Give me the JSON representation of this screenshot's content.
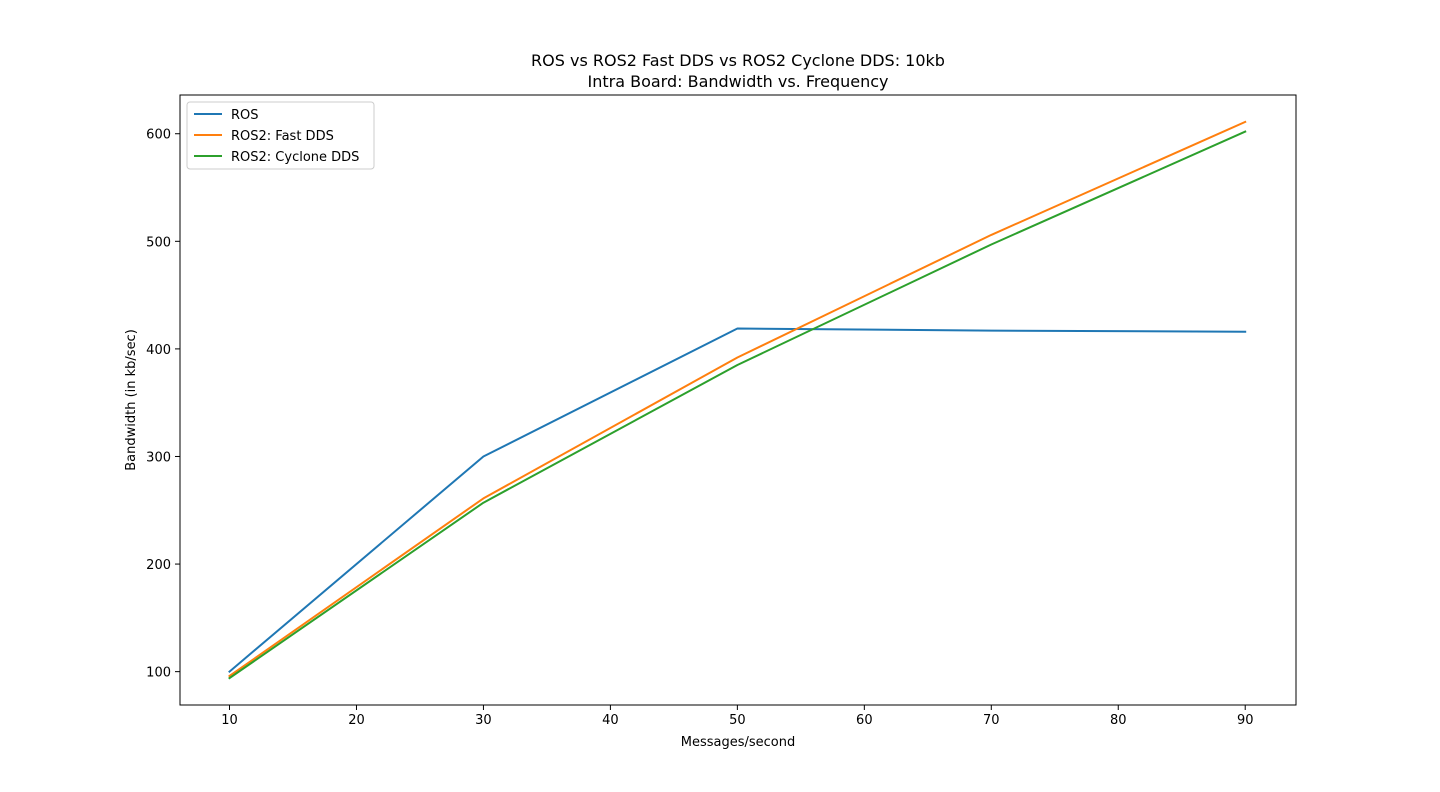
{
  "chart_data": {
    "type": "line",
    "title": "ROS vs ROS2 Fast DDS vs ROS2 Cyclone DDS: 10kb",
    "subtitle": "Intra Board: Bandwidth vs. Frequency",
    "xlabel": "Messages/second",
    "ylabel": "Bandwidth (in kb/sec)",
    "xlim": [
      6.1,
      94
    ],
    "ylim": [
      69,
      636
    ],
    "xticks": [
      10,
      20,
      30,
      40,
      50,
      60,
      70,
      80,
      90
    ],
    "yticks": [
      100,
      200,
      300,
      400,
      500,
      600
    ],
    "grid": false,
    "legend_position": "top-left",
    "series": [
      {
        "name": "ROS",
        "color": "#1f77b4",
        "x": [
          10,
          30,
          50,
          70,
          90
        ],
        "y": [
          100,
          300,
          419,
          417,
          416
        ]
      },
      {
        "name": "ROS2: Fast DDS",
        "color": "#ff7f0e",
        "x": [
          10,
          30,
          50,
          70,
          90
        ],
        "y": [
          96,
          261,
          392,
          506,
          611
        ]
      },
      {
        "name": "ROS2: Cyclone DDS",
        "color": "#2ca02c",
        "x": [
          10,
          30,
          50,
          70,
          90
        ],
        "y": [
          94,
          257,
          385,
          497,
          602
        ]
      }
    ]
  }
}
